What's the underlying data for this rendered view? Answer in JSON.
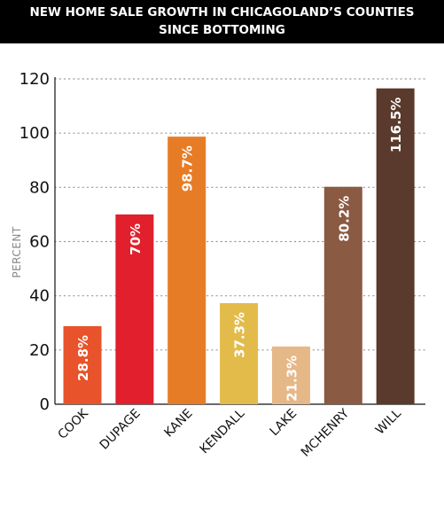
{
  "header": {
    "title_line1": "NEW HOME SALE GROWTH IN CHICAGOLAND’S COUNTIES",
    "title_line2": "SINCE BOTTOMING"
  },
  "chart_data": {
    "type": "bar",
    "title": "NEW HOME SALE GROWTH IN CHICAGOLAND’S COUNTIES SINCE BOTTOMING",
    "xlabel": "",
    "ylabel": "PERCENT",
    "ylim": [
      0,
      120
    ],
    "yticks": [
      0,
      20,
      40,
      60,
      80,
      100,
      120
    ],
    "grid": "horizontal dotted",
    "categories": [
      "COOK",
      "DUPAGE",
      "KANE",
      "KENDALL",
      "LAKE",
      "MCHENRY",
      "WILL"
    ],
    "values": [
      28.8,
      70,
      98.7,
      37.3,
      21.3,
      80.2,
      116.5
    ],
    "data_labels": [
      "28.8%",
      "70%",
      "98.7%",
      "37.3%",
      "21.3%",
      "80.2%",
      "116.5%"
    ],
    "colors": [
      "#e8532b",
      "#e21f2c",
      "#e67c26",
      "#e3bb4a",
      "#e6b887",
      "#8b5a42",
      "#5a3a2c"
    ]
  }
}
